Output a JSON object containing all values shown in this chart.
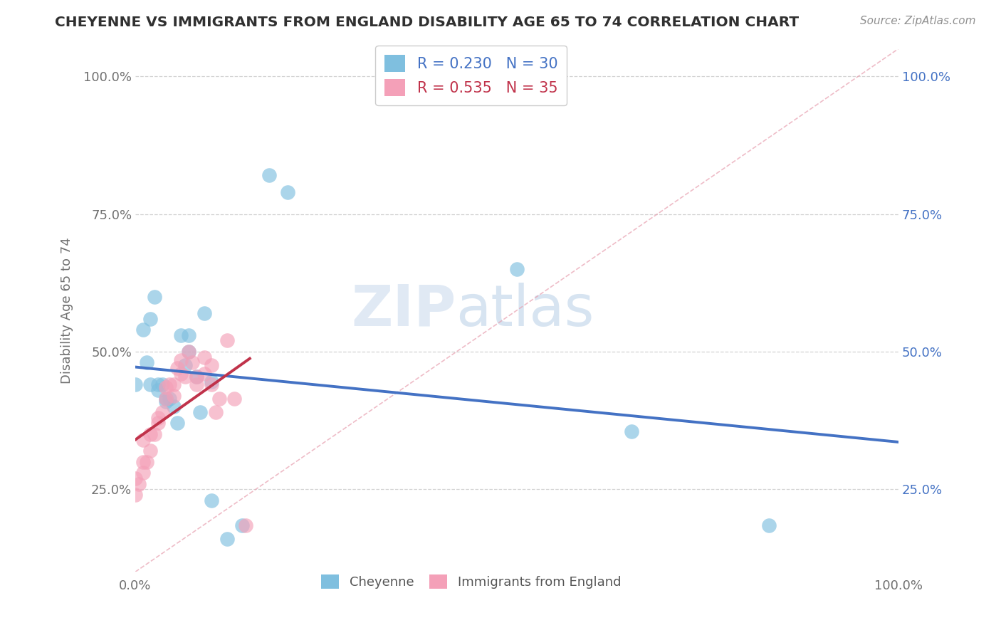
{
  "title": "CHEYENNE VS IMMIGRANTS FROM ENGLAND DISABILITY AGE 65 TO 74 CORRELATION CHART",
  "source": "Source: ZipAtlas.com",
  "ylabel": "Disability Age 65 to 74",
  "xlim": [
    0,
    1.0
  ],
  "ylim": [
    0.1,
    1.05
  ],
  "xtick_positions": [
    0.0,
    1.0
  ],
  "xtick_labels": [
    "0.0%",
    "100.0%"
  ],
  "ytick_positions": [
    0.25,
    0.5,
    0.75,
    1.0
  ],
  "ytick_labels": [
    "25.0%",
    "50.0%",
    "75.0%",
    "100.0%"
  ],
  "watermark_zip": "ZIP",
  "watermark_atlas": "atlas",
  "legend1_r": "0.230",
  "legend1_n": "30",
  "legend2_r": "0.535",
  "legend2_n": "35",
  "color_cheyenne": "#7fbfdf",
  "color_england": "#f4a0b8",
  "color_cheyenne_line": "#4472c4",
  "color_england_line": "#c0324a",
  "color_diag": "#e8a0b0",
  "cheyenne_x": [
    0.0,
    0.01,
    0.015,
    0.02,
    0.02,
    0.025,
    0.03,
    0.03,
    0.035,
    0.04,
    0.04,
    0.045,
    0.05,
    0.055,
    0.06,
    0.065,
    0.07,
    0.07,
    0.08,
    0.085,
    0.09,
    0.1,
    0.1,
    0.12,
    0.14,
    0.175,
    0.2,
    0.5,
    0.65,
    0.83
  ],
  "cheyenne_y": [
    0.44,
    0.54,
    0.48,
    0.56,
    0.44,
    0.6,
    0.44,
    0.43,
    0.44,
    0.415,
    0.41,
    0.415,
    0.4,
    0.37,
    0.53,
    0.475,
    0.53,
    0.5,
    0.455,
    0.39,
    0.57,
    0.445,
    0.23,
    0.16,
    0.185,
    0.82,
    0.79,
    0.65,
    0.355,
    0.185
  ],
  "england_x": [
    0.0,
    0.0,
    0.005,
    0.01,
    0.01,
    0.01,
    0.015,
    0.02,
    0.02,
    0.025,
    0.03,
    0.03,
    0.035,
    0.04,
    0.04,
    0.045,
    0.05,
    0.05,
    0.055,
    0.06,
    0.06,
    0.065,
    0.07,
    0.075,
    0.08,
    0.08,
    0.09,
    0.09,
    0.1,
    0.1,
    0.105,
    0.11,
    0.12,
    0.13,
    0.145
  ],
  "england_y": [
    0.24,
    0.27,
    0.26,
    0.28,
    0.3,
    0.34,
    0.3,
    0.32,
    0.35,
    0.35,
    0.37,
    0.38,
    0.39,
    0.415,
    0.435,
    0.44,
    0.44,
    0.42,
    0.47,
    0.46,
    0.485,
    0.455,
    0.5,
    0.48,
    0.44,
    0.455,
    0.46,
    0.49,
    0.475,
    0.44,
    0.39,
    0.415,
    0.52,
    0.415,
    0.185
  ],
  "background_color": "#ffffff",
  "grid_color": "#c8c8c8",
  "title_color": "#303030",
  "axis_label_color": "#707070",
  "right_tick_color": "#4472c4"
}
